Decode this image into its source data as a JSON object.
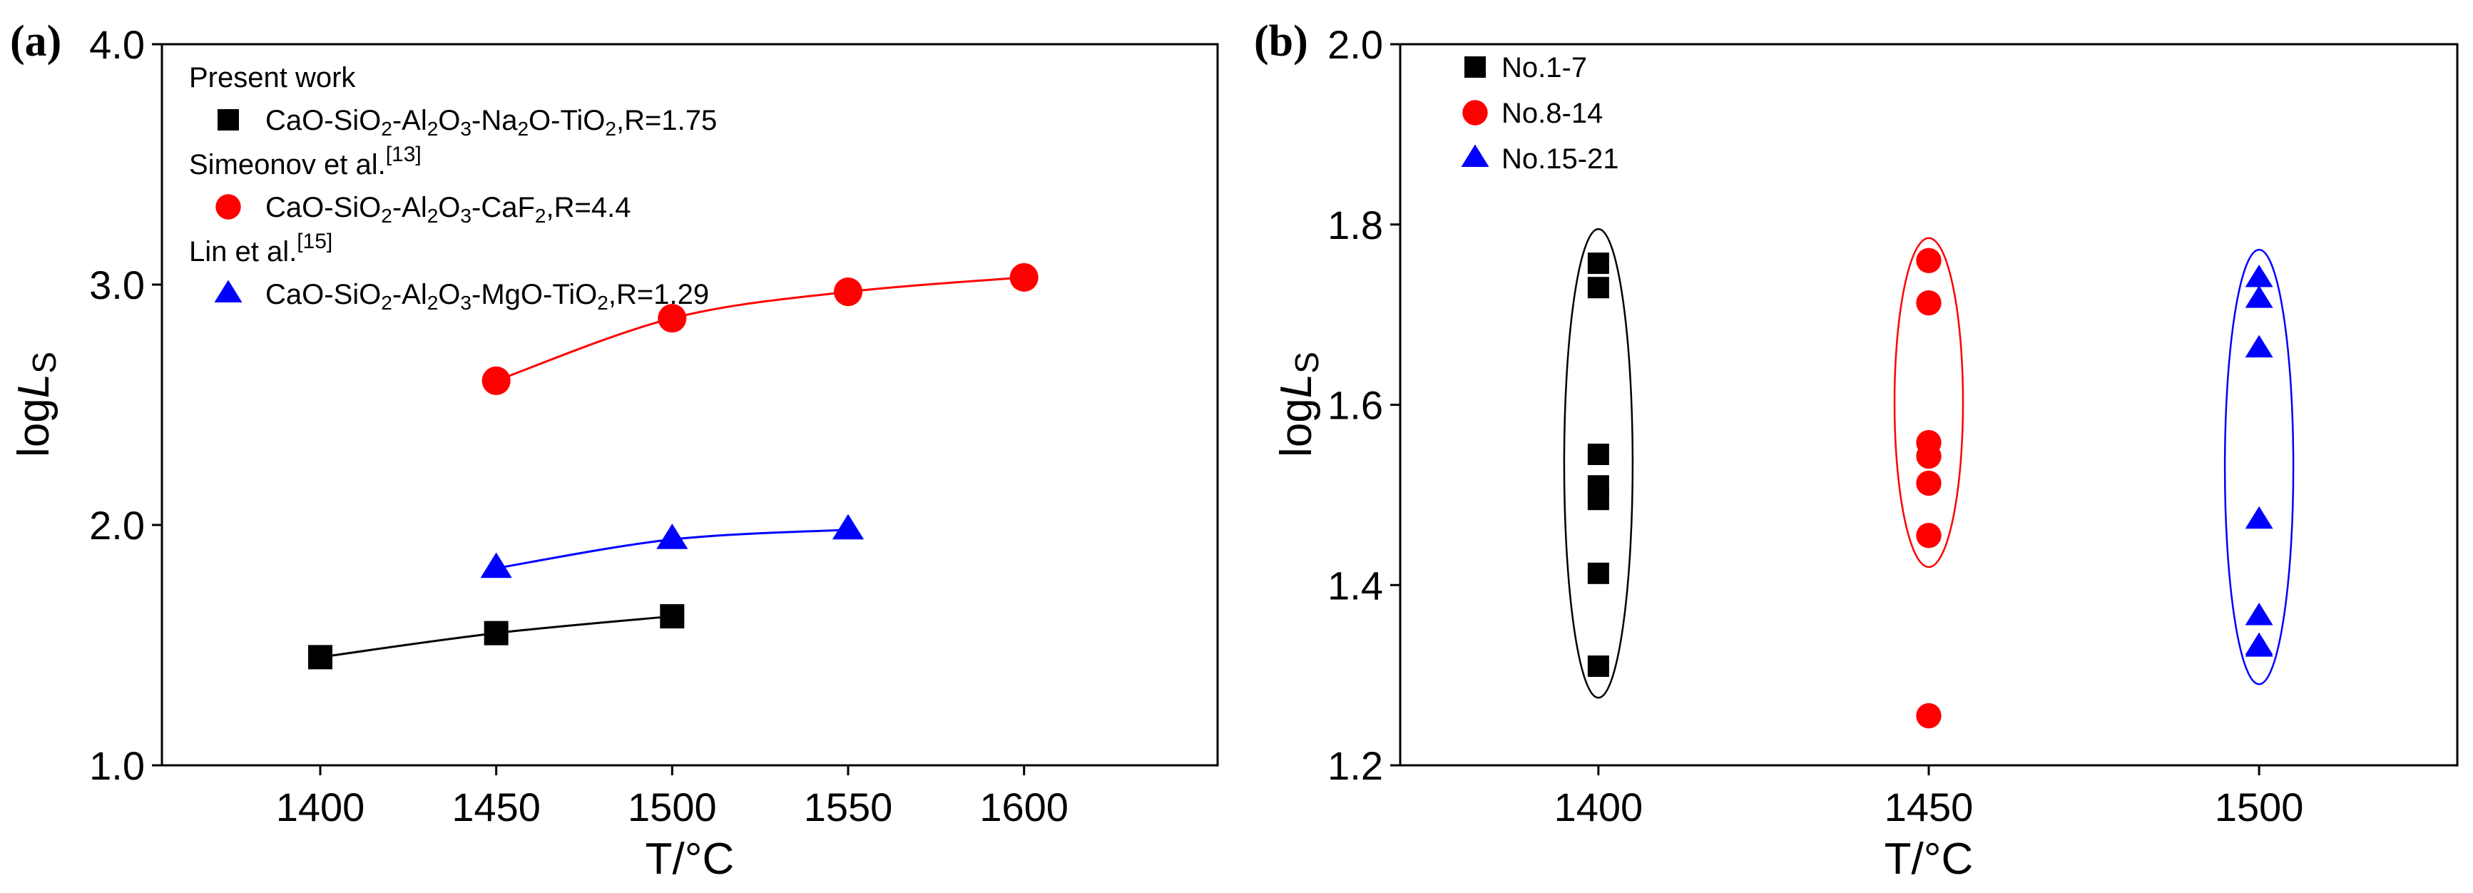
{
  "chart_data": [
    {
      "panel_label": "(a)",
      "type": "line",
      "xlabel": "T/°C",
      "ylabel_prefix": "log",
      "ylabel_italic": "L",
      "ylabel_sub": "S",
      "xlim": [
        1355,
        1655
      ],
      "ylim": [
        1.0,
        4.0
      ],
      "xticks": [
        1400,
        1450,
        1500,
        1550,
        1600
      ],
      "yticks": [
        1.0,
        2.0,
        3.0,
        4.0
      ],
      "ytick_labels": [
        "1.0",
        "2.0",
        "3.0",
        "4.0"
      ],
      "legend": {
        "groups": [
          {
            "header": "Present work",
            "header_sup": "",
            "series_index": 0
          },
          {
            "header": "Simeonov et al.",
            "header_sup": "[13]",
            "series_index": 1
          },
          {
            "header": "Lin et al.",
            "header_sup": "[15]",
            "series_index": 2
          }
        ]
      },
      "series": [
        {
          "name": "CaO-SiO2-Al2O3-Na2O-TiO2,R=1.75",
          "label_parts": [
            [
              "CaO-SiO",
              ""
            ],
            [
              "2",
              "sub"
            ],
            [
              "-Al",
              ""
            ],
            [
              "2",
              "sub"
            ],
            [
              "O",
              ""
            ],
            [
              "3",
              "sub"
            ],
            [
              "-Na",
              ""
            ],
            [
              "2",
              "sub"
            ],
            [
              "O-TiO",
              ""
            ],
            [
              "2",
              "sub"
            ],
            [
              ",R=1.75",
              ""
            ]
          ],
          "marker": "square",
          "color": "#000000",
          "x": [
            1400,
            1450,
            1500
          ],
          "y": [
            1.45,
            1.55,
            1.62
          ]
        },
        {
          "name": "CaO-SiO2-Al2O3-CaF2,R=4.4",
          "label_parts": [
            [
              "CaO-SiO",
              ""
            ],
            [
              "2",
              "sub"
            ],
            [
              "-Al",
              ""
            ],
            [
              "2",
              "sub"
            ],
            [
              "O",
              ""
            ],
            [
              "3",
              "sub"
            ],
            [
              "-CaF",
              ""
            ],
            [
              "2",
              "sub"
            ],
            [
              ",R=4.4",
              ""
            ]
          ],
          "marker": "circle",
          "color": "#ff0000",
          "x": [
            1450,
            1500,
            1550,
            1600
          ],
          "y": [
            2.6,
            2.86,
            2.97,
            3.03
          ]
        },
        {
          "name": "CaO-SiO2-Al2O3-MgO-TiO2,R=1.29",
          "label_parts": [
            [
              "CaO-SiO",
              ""
            ],
            [
              "2",
              "sub"
            ],
            [
              "-Al",
              ""
            ],
            [
              "2",
              "sub"
            ],
            [
              "O",
              ""
            ],
            [
              "3",
              "sub"
            ],
            [
              "-MgO-TiO",
              ""
            ],
            [
              "2",
              "sub"
            ],
            [
              ",R=1.29",
              ""
            ]
          ],
          "marker": "triangle",
          "color": "#0000ff",
          "x": [
            1450,
            1500,
            1550
          ],
          "y": [
            1.82,
            1.94,
            1.98
          ]
        }
      ]
    },
    {
      "panel_label": "(b)",
      "type": "scatter",
      "xlabel": "T/°C",
      "ylabel_prefix": "log",
      "ylabel_italic": "L",
      "ylabel_sub": "S",
      "xlim": [
        1370,
        1530
      ],
      "ylim": [
        1.2,
        2.0
      ],
      "xticks": [
        1400,
        1450,
        1500
      ],
      "yticks": [
        1.2,
        1.4,
        1.6,
        1.8,
        2.0
      ],
      "ytick_labels": [
        "1.2",
        "1.4",
        "1.6",
        "1.8",
        "2.0"
      ],
      "series": [
        {
          "name": "No.1-7",
          "marker": "square",
          "color": "#000000",
          "x": [
            1400,
            1400,
            1400,
            1400,
            1400,
            1400,
            1400
          ],
          "y": [
            1.757,
            1.73,
            1.545,
            1.51,
            1.495,
            1.413,
            1.31
          ],
          "ellipse": {
            "x": 1400,
            "y_min": 1.275,
            "y_max": 1.795
          }
        },
        {
          "name": "No.8-14",
          "marker": "circle",
          "color": "#ff0000",
          "x": [
            1450,
            1450,
            1450,
            1450,
            1450,
            1450,
            1450
          ],
          "y": [
            1.76,
            1.713,
            1.558,
            1.543,
            1.513,
            1.455,
            1.255
          ],
          "ellipse": {
            "x": 1450,
            "y_min": 1.42,
            "y_max": 1.785
          }
        },
        {
          "name": "No.15-21",
          "marker": "triangle",
          "color": "#0000ff",
          "x": [
            1500,
            1500,
            1500,
            1500,
            1500,
            1500,
            1500
          ],
          "y": [
            1.74,
            1.717,
            1.662,
            1.472,
            1.365,
            1.332,
            1.33
          ],
          "ellipse": {
            "x": 1500,
            "y_min": 1.29,
            "y_max": 1.772
          }
        }
      ]
    }
  ]
}
